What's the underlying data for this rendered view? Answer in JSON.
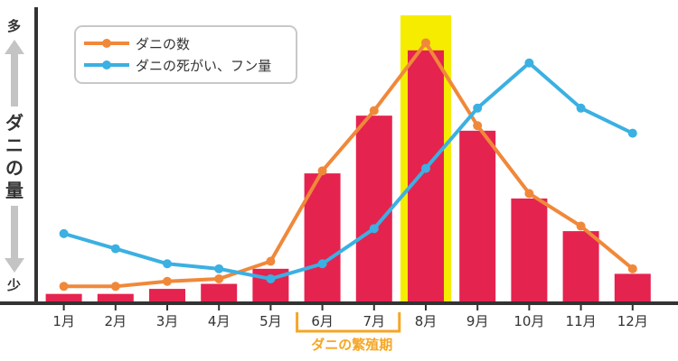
{
  "chart_data": {
    "type": "bar",
    "categories": [
      "1月",
      "2月",
      "3月",
      "4月",
      "5月",
      "6月",
      "7月",
      "8月",
      "9月",
      "10月",
      "11月",
      "12月"
    ],
    "values": [
      3,
      3,
      5,
      7,
      13,
      51,
      74,
      100,
      68,
      41,
      28,
      11
    ],
    "series": [
      {
        "name": "ダニの数",
        "type": "line",
        "color": "#f0883a",
        "values": [
          6,
          6,
          8,
          9,
          16,
          52,
          76,
          103,
          70,
          43,
          30,
          13
        ]
      },
      {
        "name": "ダニの死がい、フン量",
        "type": "line",
        "color": "#3bb0e2",
        "values": [
          27,
          21,
          15,
          13,
          9,
          15,
          29,
          53,
          77,
          95,
          77,
          67
        ]
      }
    ],
    "bar_color": "#e5234f",
    "highlight": {
      "category": "8月",
      "color": "#f5ec00"
    },
    "ylabel": "ダニの量",
    "ylabel_high": "多",
    "ylabel_low": "少",
    "bracket": {
      "label": "ダニの繁殖期",
      "from": "6月",
      "to": "7月",
      "color": "#f6a623"
    },
    "legend_position": "top-left",
    "grid": false,
    "ylim": [
      0,
      110
    ]
  }
}
